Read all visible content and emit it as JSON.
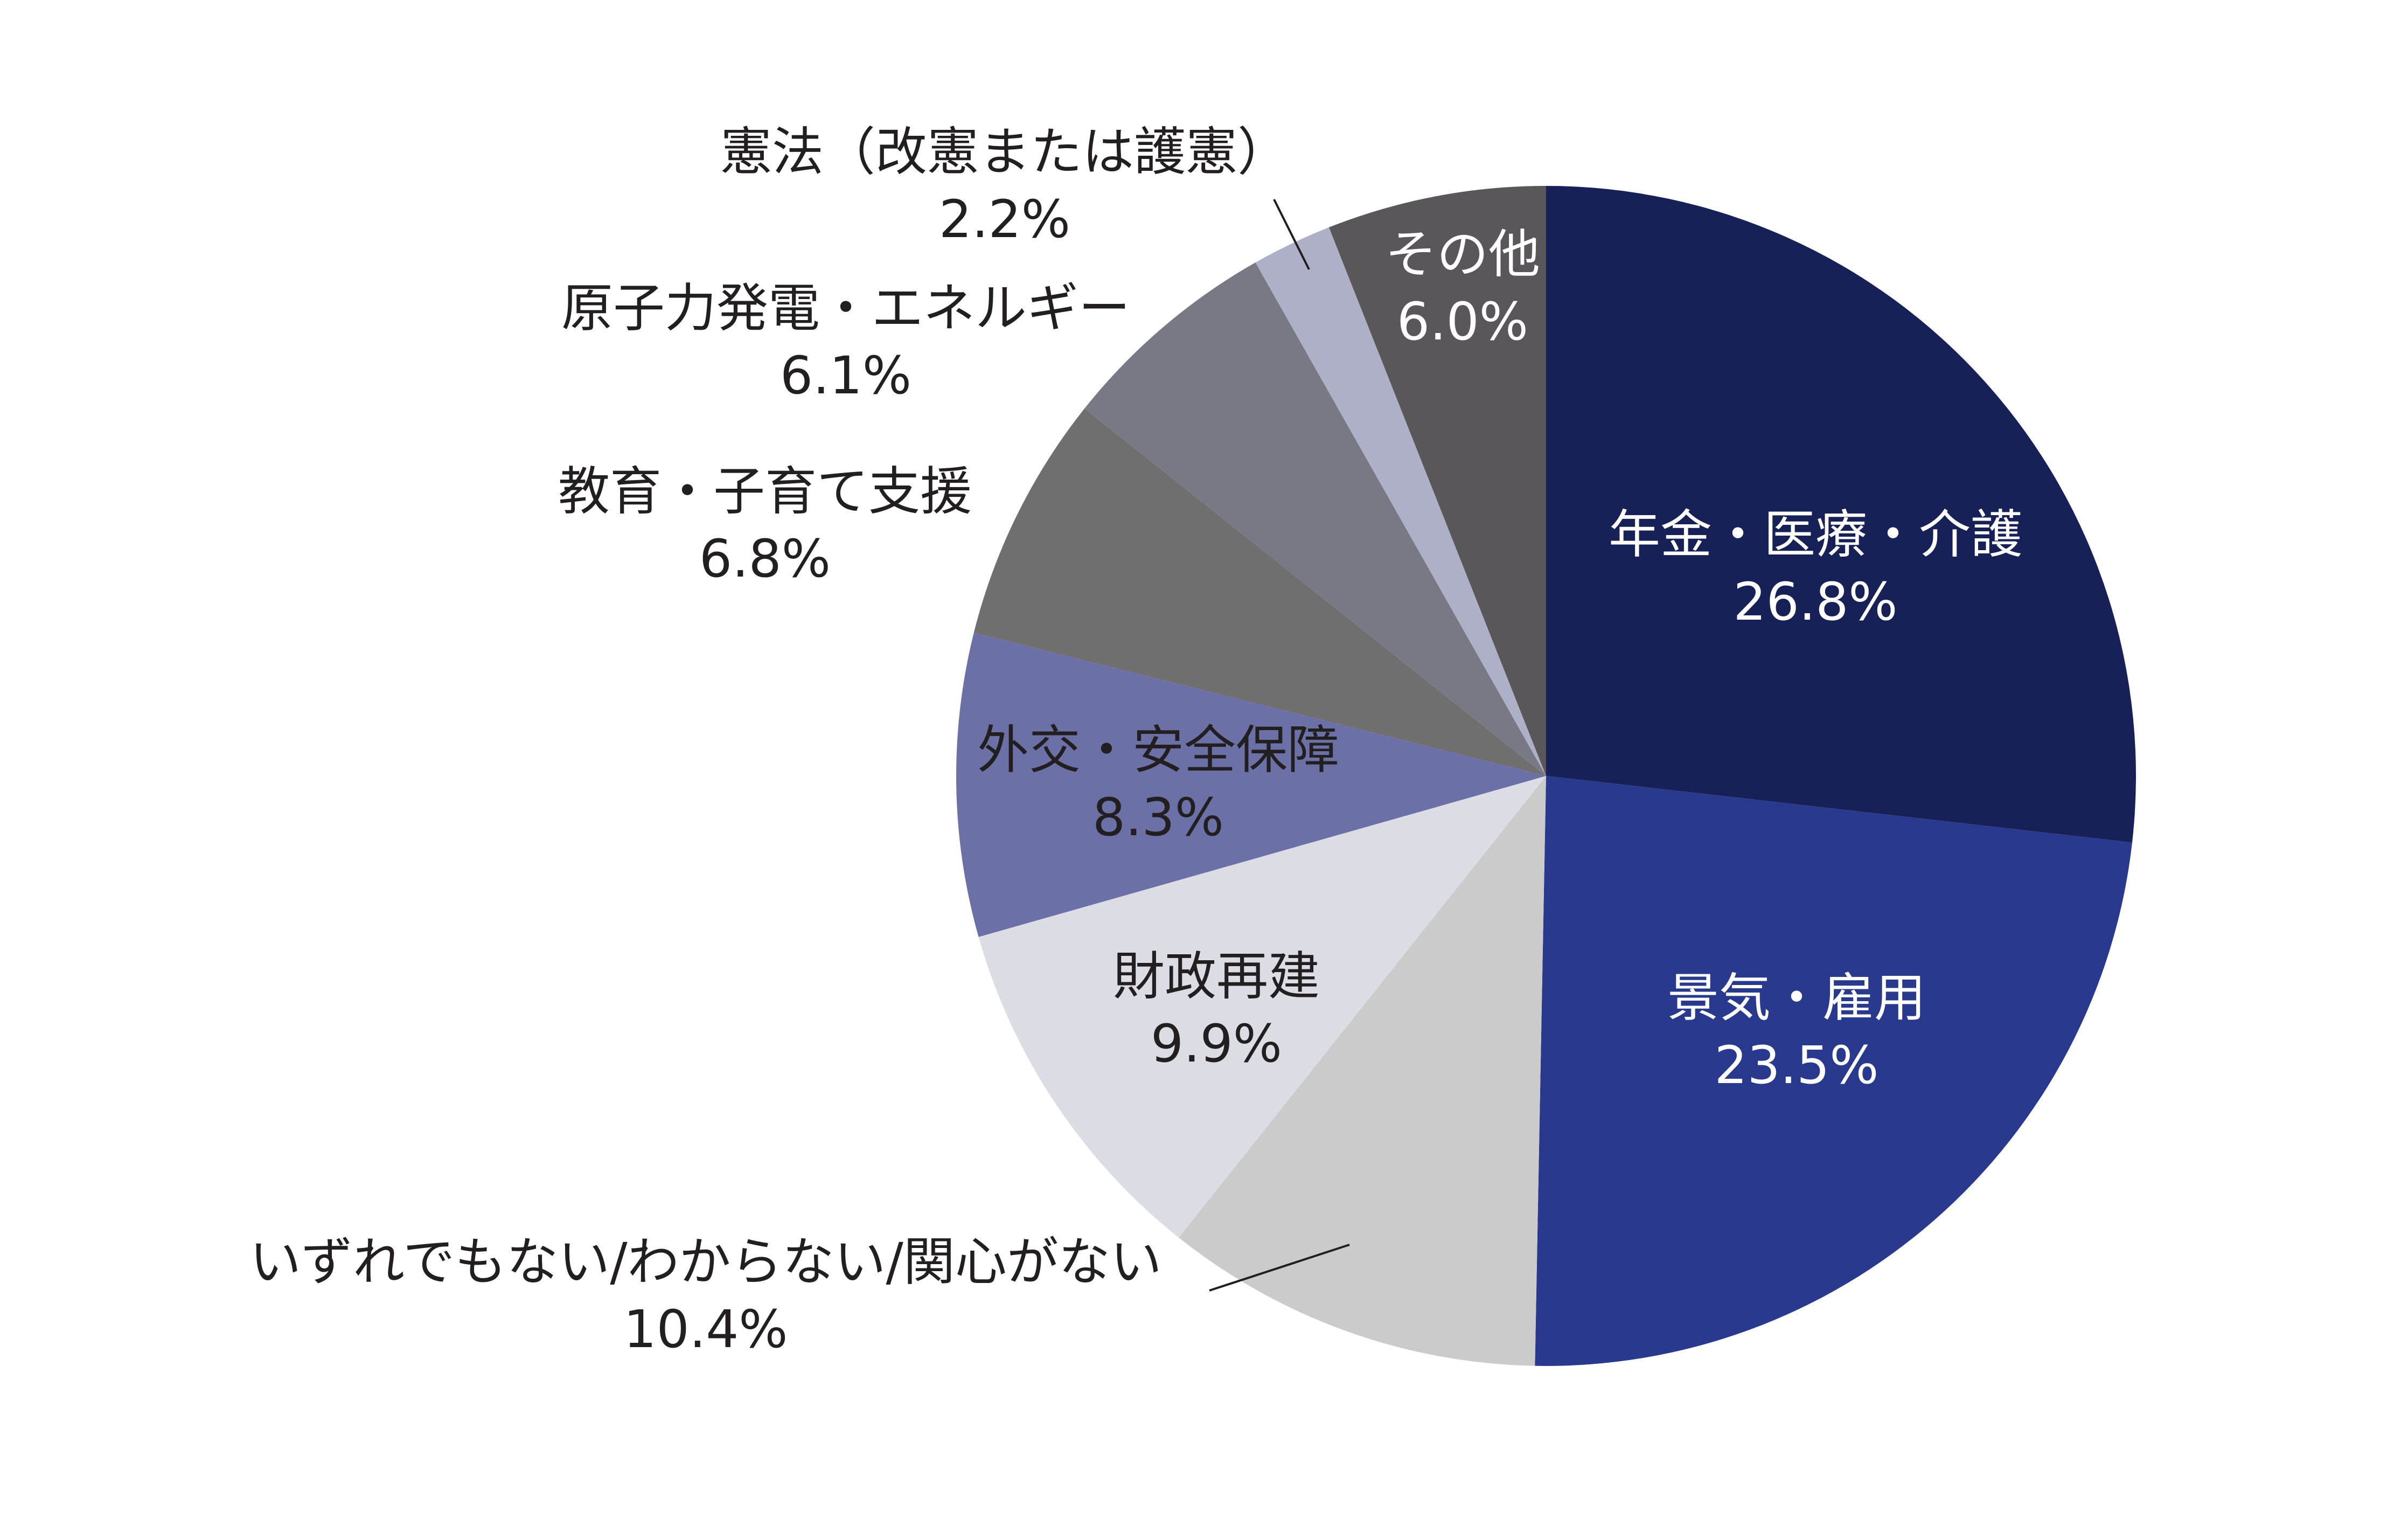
{
  "chart_data": {
    "type": "pie",
    "title": "",
    "slices": [
      {
        "label": "年金・医療・介護",
        "value": 26.8,
        "value_label": "26.8%",
        "color": "#172157",
        "text_color": "#ffffff"
      },
      {
        "label": "景気・雇用",
        "value": 23.5,
        "value_label": "23.5%",
        "color": "#29398e",
        "text_color": "#ffffff"
      },
      {
        "label": "いずれでもない/わからない/関心がない",
        "value": 10.4,
        "value_label": "10.4%",
        "color": "#cbcbcb",
        "text_color": "#231f20"
      },
      {
        "label": "財政再建",
        "value": 9.9,
        "value_label": "9.9%",
        "color": "#dcdce5",
        "text_color": "#231f20"
      },
      {
        "label": "外交・安全保障",
        "value": 8.3,
        "value_label": "8.3%",
        "color": "#6b70a6",
        "text_color": "#231f20"
      },
      {
        "label": "教育・子育て支援",
        "value": 6.8,
        "value_label": "6.8%",
        "color": "#6f6f6f",
        "text_color": "#231f20"
      },
      {
        "label": "原子力発電・エネルギー",
        "value": 6.1,
        "value_label": "6.1%",
        "color": "#797985",
        "text_color": "#231f20"
      },
      {
        "label": "憲法（改憲または護憲）",
        "value": 2.2,
        "value_label": "2.2%",
        "color": "#aeb0c8",
        "text_color": "#231f20"
      },
      {
        "label": "その他",
        "value": 6.0,
        "value_label": "6.0%",
        "color": "#595759",
        "text_color": "#ffffff"
      }
    ],
    "start": "12 o'clock",
    "direction": "clockwise",
    "legend": "none"
  }
}
